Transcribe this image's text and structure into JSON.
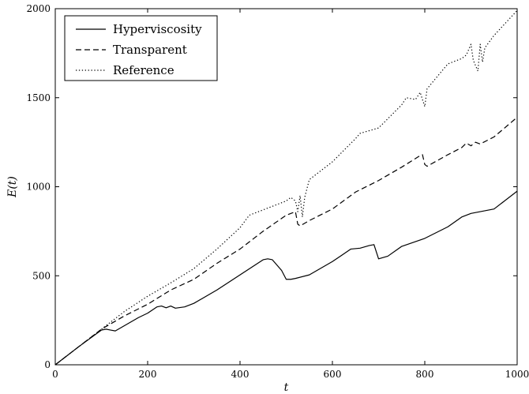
{
  "chart_data": {
    "type": "line",
    "xlabel": "t",
    "ylabel": "E(t)",
    "xlim": [
      0,
      1000
    ],
    "ylim": [
      0,
      2000
    ],
    "xticks": [
      0,
      200,
      400,
      600,
      800,
      1000
    ],
    "yticks": [
      0,
      500,
      1000,
      1500,
      2000
    ],
    "xtick_labels": [
      "0",
      "200",
      "400",
      "600",
      "800",
      "1000"
    ],
    "ytick_labels": [
      "0",
      "500",
      "1000",
      "1500",
      "2000"
    ],
    "grid": false,
    "legend_position": "top-left",
    "series": [
      {
        "name": "Hyperviscosity",
        "style": "solid",
        "color": "#000000",
        "x": [
          0,
          50,
          100,
          110,
          120,
          130,
          150,
          180,
          200,
          220,
          230,
          240,
          250,
          260,
          280,
          300,
          350,
          400,
          450,
          460,
          470,
          480,
          490,
          500,
          510,
          520,
          550,
          600,
          620,
          640,
          660,
          680,
          690,
          700,
          720,
          750,
          800,
          850,
          880,
          900,
          950,
          1000
        ],
        "y": [
          0,
          100,
          195,
          200,
          195,
          190,
          220,
          265,
          290,
          325,
          330,
          320,
          330,
          318,
          325,
          345,
          420,
          505,
          590,
          595,
          590,
          560,
          530,
          480,
          480,
          485,
          505,
          580,
          615,
          650,
          655,
          670,
          675,
          595,
          610,
          665,
          710,
          775,
          830,
          850,
          875,
          975
        ]
      },
      {
        "name": "Transparent",
        "style": "dashed",
        "color": "#000000",
        "x": [
          0,
          50,
          100,
          150,
          200,
          250,
          300,
          350,
          400,
          450,
          500,
          520,
          525,
          530,
          550,
          600,
          650,
          700,
          750,
          790,
          795,
          800,
          805,
          850,
          880,
          890,
          900,
          910,
          920,
          950,
          1000
        ],
        "y": [
          0,
          100,
          200,
          275,
          340,
          420,
          480,
          570,
          650,
          750,
          840,
          860,
          790,
          780,
          810,
          875,
          970,
          1035,
          1110,
          1175,
          1180,
          1125,
          1115,
          1180,
          1220,
          1245,
          1230,
          1250,
          1240,
          1280,
          1390
        ]
      },
      {
        "name": "Reference",
        "style": "dotted",
        "color": "#000000",
        "x": [
          0,
          50,
          100,
          150,
          200,
          250,
          300,
          350,
          400,
          420,
          450,
          500,
          510,
          520,
          525,
          530,
          535,
          540,
          550,
          600,
          650,
          660,
          700,
          750,
          760,
          780,
          790,
          800,
          805,
          850,
          880,
          890,
          900,
          905,
          910,
          915,
          920,
          925,
          930,
          950,
          1000
        ],
        "y": [
          0,
          100,
          200,
          300,
          385,
          460,
          540,
          650,
          770,
          840,
          870,
          920,
          940,
          920,
          860,
          950,
          830,
          940,
          1040,
          1140,
          1270,
          1300,
          1330,
          1460,
          1500,
          1490,
          1530,
          1450,
          1550,
          1690,
          1720,
          1740,
          1800,
          1710,
          1680,
          1650,
          1800,
          1700,
          1780,
          1850,
          1990
        ]
      }
    ]
  }
}
